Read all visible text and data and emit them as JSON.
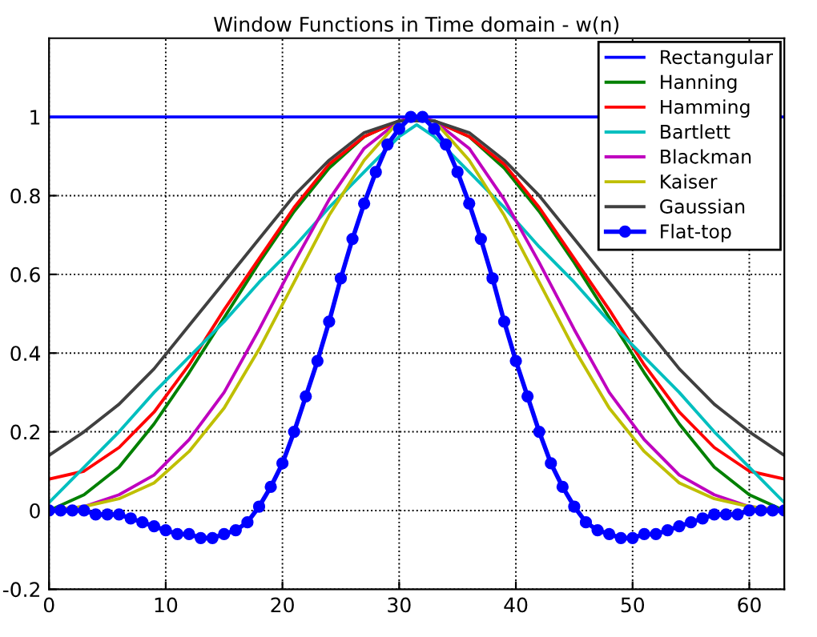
{
  "chart_data": {
    "type": "line",
    "title": "Window Functions in Time domain - w(n)",
    "xlim": [
      0,
      63
    ],
    "ylim": [
      -0.2,
      1.2
    ],
    "xticks": [
      0,
      10,
      20,
      30,
      40,
      50,
      60
    ],
    "yticks": [
      -0.2,
      0,
      0.2,
      0.4,
      0.6,
      0.8,
      1
    ],
    "grid": true,
    "legend": "top right",
    "series": [
      {
        "name": "Rectangular",
        "color": "#0000ff",
        "x": [
          0,
          63
        ],
        "values": [
          1,
          1
        ]
      },
      {
        "name": "Hanning",
        "color": "#008000",
        "x": [
          0,
          3,
          6,
          9,
          12,
          15,
          18,
          21,
          24,
          27,
          30,
          33,
          36,
          39,
          42,
          45,
          48,
          51,
          54,
          57,
          60,
          63
        ],
        "values": [
          0,
          0.04,
          0.11,
          0.22,
          0.35,
          0.49,
          0.63,
          0.76,
          0.87,
          0.95,
          0.99,
          0.99,
          0.95,
          0.87,
          0.76,
          0.63,
          0.49,
          0.35,
          0.22,
          0.11,
          0.04,
          0
        ]
      },
      {
        "name": "Hamming",
        "color": "#ff0000",
        "x": [
          0,
          3,
          6,
          9,
          12,
          15,
          18,
          21,
          24,
          27,
          30,
          33,
          36,
          39,
          42,
          45,
          48,
          51,
          54,
          57,
          60,
          63
        ],
        "values": [
          0.08,
          0.1,
          0.16,
          0.25,
          0.37,
          0.51,
          0.64,
          0.77,
          0.88,
          0.95,
          0.99,
          0.99,
          0.95,
          0.88,
          0.77,
          0.64,
          0.51,
          0.37,
          0.25,
          0.16,
          0.1,
          0.08
        ]
      },
      {
        "name": "Bartlett",
        "color": "#00bfbf",
        "x": [
          0,
          3,
          6,
          9,
          12,
          15,
          18,
          21,
          24,
          27,
          30,
          31.5,
          33,
          36,
          39,
          42,
          45,
          48,
          51,
          54,
          57,
          60,
          63
        ],
        "values": [
          0.02,
          0.11,
          0.2,
          0.3,
          0.39,
          0.48,
          0.58,
          0.67,
          0.77,
          0.86,
          0.95,
          0.98,
          0.95,
          0.86,
          0.77,
          0.67,
          0.58,
          0.48,
          0.39,
          0.3,
          0.2,
          0.11,
          0.02
        ]
      },
      {
        "name": "Blackman",
        "color": "#bf00bf",
        "x": [
          0,
          3,
          6,
          9,
          12,
          15,
          18,
          21,
          24,
          27,
          30,
          31.5,
          33,
          36,
          39,
          42,
          45,
          48,
          51,
          54,
          57,
          60,
          63
        ],
        "values": [
          0,
          0.01,
          0.04,
          0.09,
          0.18,
          0.3,
          0.46,
          0.63,
          0.79,
          0.92,
          0.99,
          1,
          0.99,
          0.92,
          0.79,
          0.63,
          0.46,
          0.3,
          0.18,
          0.09,
          0.04,
          0.01,
          0
        ]
      },
      {
        "name": "Kaiser",
        "color": "#bfbf00",
        "x": [
          0,
          3,
          6,
          9,
          12,
          15,
          18,
          21,
          24,
          27,
          30,
          33,
          36,
          39,
          42,
          45,
          48,
          51,
          54,
          57,
          60,
          63
        ],
        "values": [
          0,
          0.01,
          0.03,
          0.07,
          0.15,
          0.26,
          0.41,
          0.58,
          0.75,
          0.89,
          0.99,
          0.99,
          0.89,
          0.75,
          0.58,
          0.41,
          0.26,
          0.15,
          0.07,
          0.03,
          0.01,
          0
        ]
      },
      {
        "name": "Gaussian",
        "color": "#404040",
        "x": [
          0,
          3,
          6,
          9,
          12,
          15,
          18,
          21,
          24,
          27,
          30,
          33,
          36,
          39,
          42,
          45,
          48,
          51,
          54,
          57,
          60,
          63
        ],
        "values": [
          0.14,
          0.2,
          0.27,
          0.36,
          0.47,
          0.58,
          0.69,
          0.8,
          0.89,
          0.96,
          0.99,
          0.99,
          0.96,
          0.89,
          0.8,
          0.69,
          0.58,
          0.47,
          0.36,
          0.27,
          0.2,
          0.14
        ]
      },
      {
        "name": "Flat-top",
        "color": "#0000ff",
        "marker": "circle",
        "x": [
          0,
          1,
          2,
          3,
          4,
          5,
          6,
          7,
          8,
          9,
          10,
          11,
          12,
          13,
          14,
          15,
          16,
          17,
          18,
          19,
          20,
          21,
          22,
          23,
          24,
          25,
          26,
          27,
          28,
          29,
          30,
          31,
          32,
          33,
          34,
          35,
          36,
          37,
          38,
          39,
          40,
          41,
          42,
          43,
          44,
          45,
          46,
          47,
          48,
          49,
          50,
          51,
          52,
          53,
          54,
          55,
          56,
          57,
          58,
          59,
          60,
          61,
          62,
          63
        ],
        "values": [
          0,
          0,
          0,
          0,
          -0.01,
          -0.01,
          -0.01,
          -0.02,
          -0.03,
          -0.04,
          -0.05,
          -0.06,
          -0.06,
          -0.07,
          -0.07,
          -0.06,
          -0.05,
          -0.03,
          0.01,
          0.06,
          0.12,
          0.2,
          0.29,
          0.38,
          0.48,
          0.59,
          0.69,
          0.78,
          0.86,
          0.93,
          0.97,
          1,
          1,
          0.97,
          0.93,
          0.86,
          0.78,
          0.69,
          0.59,
          0.48,
          0.38,
          0.29,
          0.2,
          0.12,
          0.06,
          0.01,
          -0.03,
          -0.05,
          -0.06,
          -0.07,
          -0.07,
          -0.06,
          -0.06,
          -0.05,
          -0.04,
          -0.03,
          -0.02,
          -0.01,
          -0.01,
          -0.01,
          0,
          0,
          0,
          0
        ]
      }
    ]
  }
}
